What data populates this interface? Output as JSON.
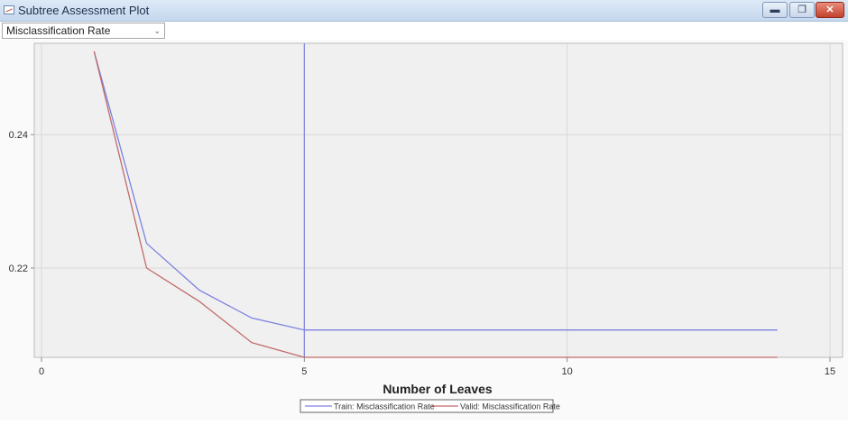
{
  "window": {
    "title": "Subtree Assessment Plot",
    "minimize_glyph": "▬",
    "restore_glyph": "❐",
    "close_glyph": "✕"
  },
  "selector": {
    "value": "Misclassification Rate",
    "chevron": "⌄"
  },
  "chart_data": {
    "type": "line",
    "xlabel": "Number of Leaves",
    "ylabel": "",
    "xlim": [
      0,
      15
    ],
    "ylim": [
      0.2066,
      0.2537
    ],
    "x_ticks": [
      0,
      5,
      10,
      15
    ],
    "y_ticks": [
      0.22,
      0.24
    ],
    "y_tick_labels": [
      "0.22",
      "0.24"
    ],
    "grid": true,
    "legend_position": "bottom-center",
    "reference_line_x": 5,
    "colors": {
      "train": "#7c82e0",
      "valid": "#c26a6a",
      "reference": "#7c82e0",
      "plot_bg": "#f0f0f0",
      "grid": "#d9d9d9"
    },
    "series": [
      {
        "name": "Train: Misclassification Rate",
        "x": [
          1,
          2,
          3,
          4,
          5,
          6,
          7,
          8,
          9,
          10,
          11,
          12,
          13,
          14
        ],
        "values": [
          0.2525,
          0.2237,
          0.2167,
          0.2125,
          0.2107,
          0.2107,
          0.2107,
          0.2107,
          0.2107,
          0.2107,
          0.2107,
          0.2107,
          0.2107,
          0.2107
        ]
      },
      {
        "name": "Valid: Misclassification Rate",
        "x": [
          1,
          2,
          3,
          4,
          5,
          6,
          7,
          8,
          9,
          10,
          11,
          12,
          13,
          14
        ],
        "values": [
          0.2525,
          0.22,
          0.215,
          0.2088,
          0.2066,
          0.2066,
          0.2066,
          0.2066,
          0.2066,
          0.2066,
          0.2066,
          0.2066,
          0.2066,
          0.2066
        ]
      }
    ]
  }
}
